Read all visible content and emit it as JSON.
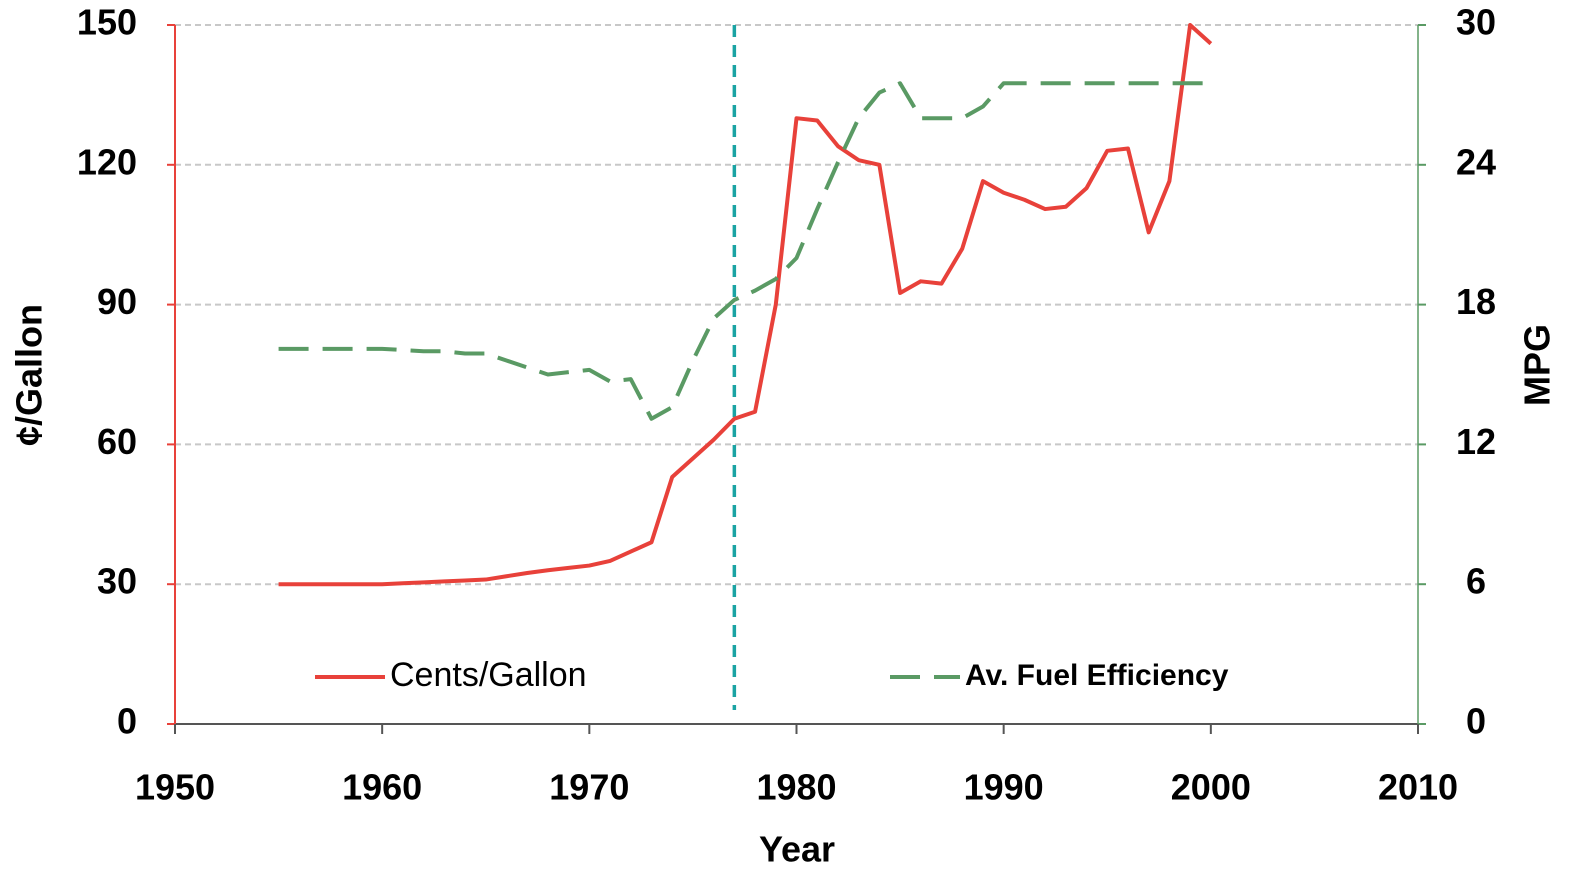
{
  "chart_data": {
    "type": "line",
    "xlabel": "Year",
    "ylabel": "¢/Gallon",
    "y2label": "MPG",
    "x": [
      1955,
      1956,
      1957,
      1958,
      1959,
      1960,
      1961,
      1962,
      1963,
      1964,
      1965,
      1966,
      1967,
      1968,
      1969,
      1970,
      1971,
      1972,
      1973,
      1974,
      1975,
      1976,
      1977,
      1978,
      1979,
      1980,
      1981,
      1982,
      1983,
      1984,
      1985,
      1986,
      1987,
      1988,
      1989,
      1990,
      1991,
      1992,
      1993,
      1994,
      1995,
      1996,
      1997,
      1998,
      1999,
      2000
    ],
    "series": [
      {
        "name": "Cents/Gallon",
        "color": "#e8413a",
        "axis": "y",
        "dash": false,
        "values": [
          30,
          30,
          30,
          30,
          30,
          30,
          30.2,
          30.4,
          30.6,
          30.8,
          31,
          31.7,
          32.4,
          33,
          33.5,
          34,
          35,
          37,
          39,
          53,
          57,
          61,
          65.5,
          67,
          90,
          130,
          129.5,
          124,
          121,
          120,
          92.5,
          95,
          94.5,
          102,
          116.5,
          114,
          112.5,
          110.5,
          111,
          115,
          123,
          123.5,
          105.5,
          116.5,
          150,
          146
        ]
      },
      {
        "name": "Av. Fuel Efficiency",
        "color": "#5a9a64",
        "axis": "y2",
        "dash": true,
        "values": [
          16.1,
          16.1,
          16.1,
          16.1,
          16.1,
          16.1,
          16.05,
          16,
          16,
          15.9,
          15.9,
          15.6,
          15.3,
          15,
          15.1,
          15.2,
          14.7,
          14.8,
          13.1,
          13.6,
          15.6,
          17.4,
          18.2,
          18.6,
          19.1,
          20,
          22.1,
          24.1,
          26,
          27.1,
          27.5,
          26,
          26,
          26,
          26.5,
          27.5,
          27.5,
          27.5,
          27.5,
          27.5,
          27.5,
          27.5,
          27.5,
          27.5,
          27.5,
          27.5
        ]
      }
    ],
    "reference_line_x": 1977,
    "reference_line_color": "#1aa3a3",
    "xlim": [
      1950,
      2010
    ],
    "xticks": [
      1950,
      1960,
      1970,
      1980,
      1990,
      2000,
      2010
    ],
    "ylim": [
      0,
      150
    ],
    "yticks": [
      0,
      30,
      60,
      90,
      120,
      150
    ],
    "y2lim": [
      0,
      30
    ],
    "y2ticks": [
      0,
      6,
      12,
      18,
      24,
      30
    ],
    "grid": true
  }
}
